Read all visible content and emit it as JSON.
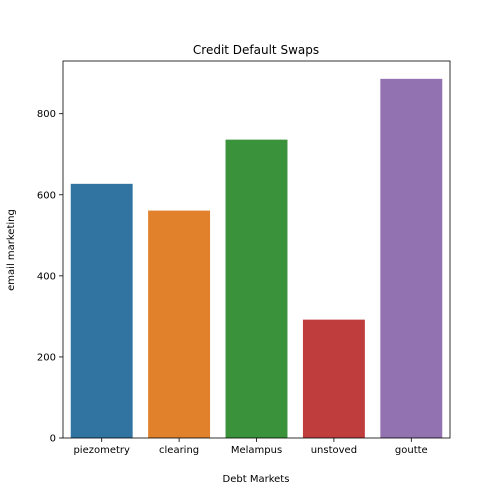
{
  "chart_data": {
    "type": "bar",
    "title": "Credit Default Swaps",
    "xlabel": "Debt Markets",
    "ylabel": "email marketing",
    "categories": [
      "piezometry",
      "clearing",
      "Melampus",
      "unstoved",
      "goutte"
    ],
    "values": [
      627,
      561,
      736,
      292,
      886
    ],
    "colors": [
      "#3274a1",
      "#e1812c",
      "#3a923a",
      "#c03d3e",
      "#9372b2"
    ],
    "ylim": [
      0,
      930
    ],
    "yticks": [
      0,
      200,
      400,
      600,
      800
    ],
    "grid": false,
    "legend": "none"
  }
}
